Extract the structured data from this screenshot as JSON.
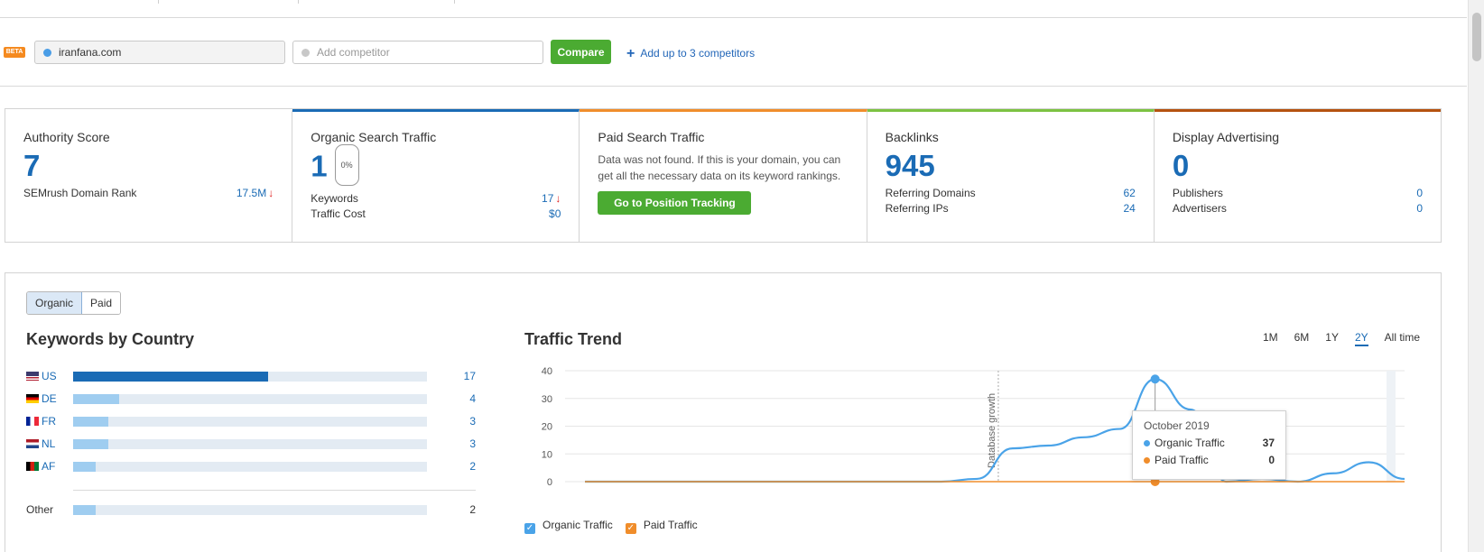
{
  "searchbar": {
    "beta_label": "BETA",
    "domain_value": "iranfana.com",
    "competitor_placeholder": "Add competitor",
    "compare_label": "Compare",
    "add_link_label": "Add up to 3 competitors",
    "domain_dot_color": "#4a9de6",
    "competitor_dot_color": "#c8c8c8"
  },
  "widgets": [
    {
      "title": "Authority Score",
      "value": "7",
      "rows": [
        {
          "label": "SEMrush Domain Rank",
          "value": "17.5M"
        }
      ],
      "accent": "none"
    },
    {
      "title": "Organic Search Traffic",
      "value": "1",
      "badge": "0%",
      "rows": [
        {
          "label": "Keywords",
          "value": "17"
        },
        {
          "label": "Traffic Cost",
          "value": "$0"
        }
      ],
      "accent": "#1a6bb5"
    },
    {
      "title": "Paid Search Traffic",
      "note": "Data was not found. If this is your domain, you can get all the necessary data on its keyword rankings.",
      "button": "Go to Position Tracking",
      "accent": "#f08d2b"
    },
    {
      "title": "Backlinks",
      "value": "945",
      "rows": [
        {
          "label": "Referring Domains",
          "value": "62"
        },
        {
          "label": "Referring IPs",
          "value": "24"
        }
      ],
      "accent": "#7cc242"
    },
    {
      "title": "Display Advertising",
      "value": "0",
      "rows": [
        {
          "label": "Publishers",
          "value": "0"
        },
        {
          "label": "Advertisers",
          "value": "0"
        }
      ],
      "accent": "#b5520f"
    }
  ],
  "panel": {
    "toggle": [
      "Organic",
      "Paid"
    ],
    "kbc_title": "Keywords by Country",
    "countries": [
      {
        "code": "US",
        "count": "17",
        "share": 0.55
      },
      {
        "code": "DE",
        "count": "4",
        "share": 0.13
      },
      {
        "code": "FR",
        "count": "3",
        "share": 0.1
      },
      {
        "code": "NL",
        "count": "3",
        "share": 0.1
      },
      {
        "code": "AF",
        "count": "2",
        "share": 0.065
      }
    ],
    "other": {
      "label": "Other",
      "count": "2",
      "share": 0.065
    },
    "traffic_title": "Traffic Trend",
    "periods": [
      "1M",
      "6M",
      "1Y",
      "2Y",
      "All time"
    ],
    "active_period": "2Y",
    "legend": [
      "Organic Traffic",
      "Paid Traffic"
    ]
  },
  "chart_data": {
    "type": "line",
    "ylim": [
      0,
      40
    ],
    "yticks": [
      "0",
      "10",
      "20",
      "30",
      "40"
    ],
    "annotation": "Database growth",
    "series": [
      {
        "name": "Organic Traffic",
        "color": "#4aa3e8",
        "x": [
          0,
          1,
          2,
          3,
          4,
          5,
          6,
          7,
          8,
          9,
          10,
          11,
          12,
          13,
          14,
          15,
          16,
          17,
          18,
          19,
          20,
          21,
          22,
          23
        ],
        "values": [
          0,
          0,
          0,
          0,
          0,
          0,
          0,
          0,
          0,
          0,
          0,
          1,
          12,
          13,
          16,
          19,
          37,
          26,
          0,
          1,
          0,
          3,
          7,
          1
        ]
      },
      {
        "name": "Paid Traffic",
        "color": "#f08d2b",
        "x": [
          0,
          1,
          2,
          3,
          4,
          5,
          6,
          7,
          8,
          9,
          10,
          11,
          12,
          13,
          14,
          15,
          16,
          17,
          18,
          19,
          20,
          21,
          22,
          23
        ],
        "values": [
          0,
          0,
          0,
          0,
          0,
          0,
          0,
          0,
          0,
          0,
          0,
          0,
          0,
          0,
          0,
          0,
          0,
          0,
          0,
          0,
          0,
          0,
          0,
          0
        ]
      }
    ],
    "tooltip": {
      "date": "October 2019",
      "organic_label": "Organic Traffic",
      "organic_value": "37",
      "paid_label": "Paid Traffic",
      "paid_value": "0"
    }
  },
  "colors": {
    "accent_blue": "#1a6bb5",
    "green": "#4bab32",
    "down_arrow": "#e02020"
  }
}
